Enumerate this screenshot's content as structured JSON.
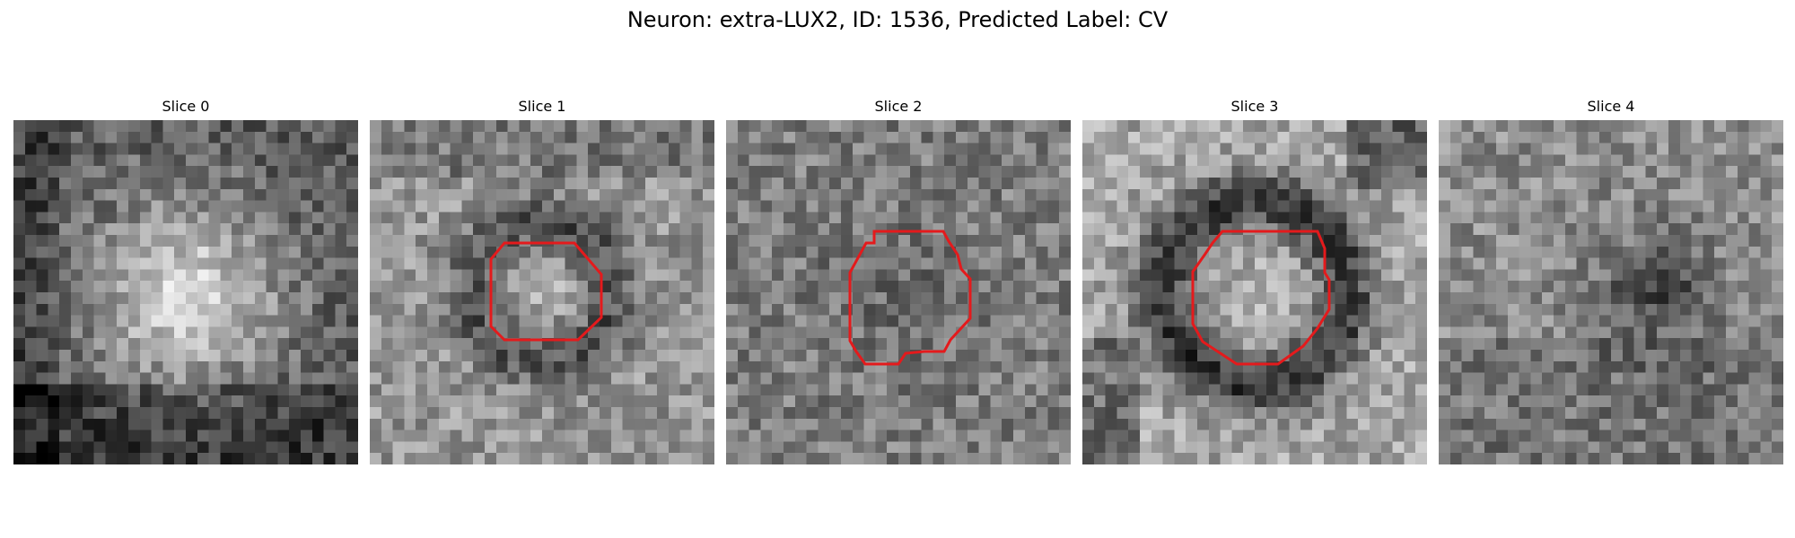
{
  "figure": {
    "title": "Neuron: extra-LUX2, ID: 1536, Predicted Label: CV"
  },
  "panels": [
    {
      "label": "Slice 0",
      "pattern": "bright-center",
      "has_contour": false
    },
    {
      "label": "Slice 1",
      "pattern": "dark-ring-bright-surround",
      "has_contour": true
    },
    {
      "label": "Slice 2",
      "pattern": "noisy-mid",
      "has_contour": true
    },
    {
      "label": "Slice 3",
      "pattern": "dark-ring-bright-core",
      "has_contour": true
    },
    {
      "label": "Slice 4",
      "pattern": "noisy-dark-center",
      "has_contour": false
    }
  ],
  "colors": {
    "contour": "#e41a1c",
    "background": "#ffffff"
  }
}
